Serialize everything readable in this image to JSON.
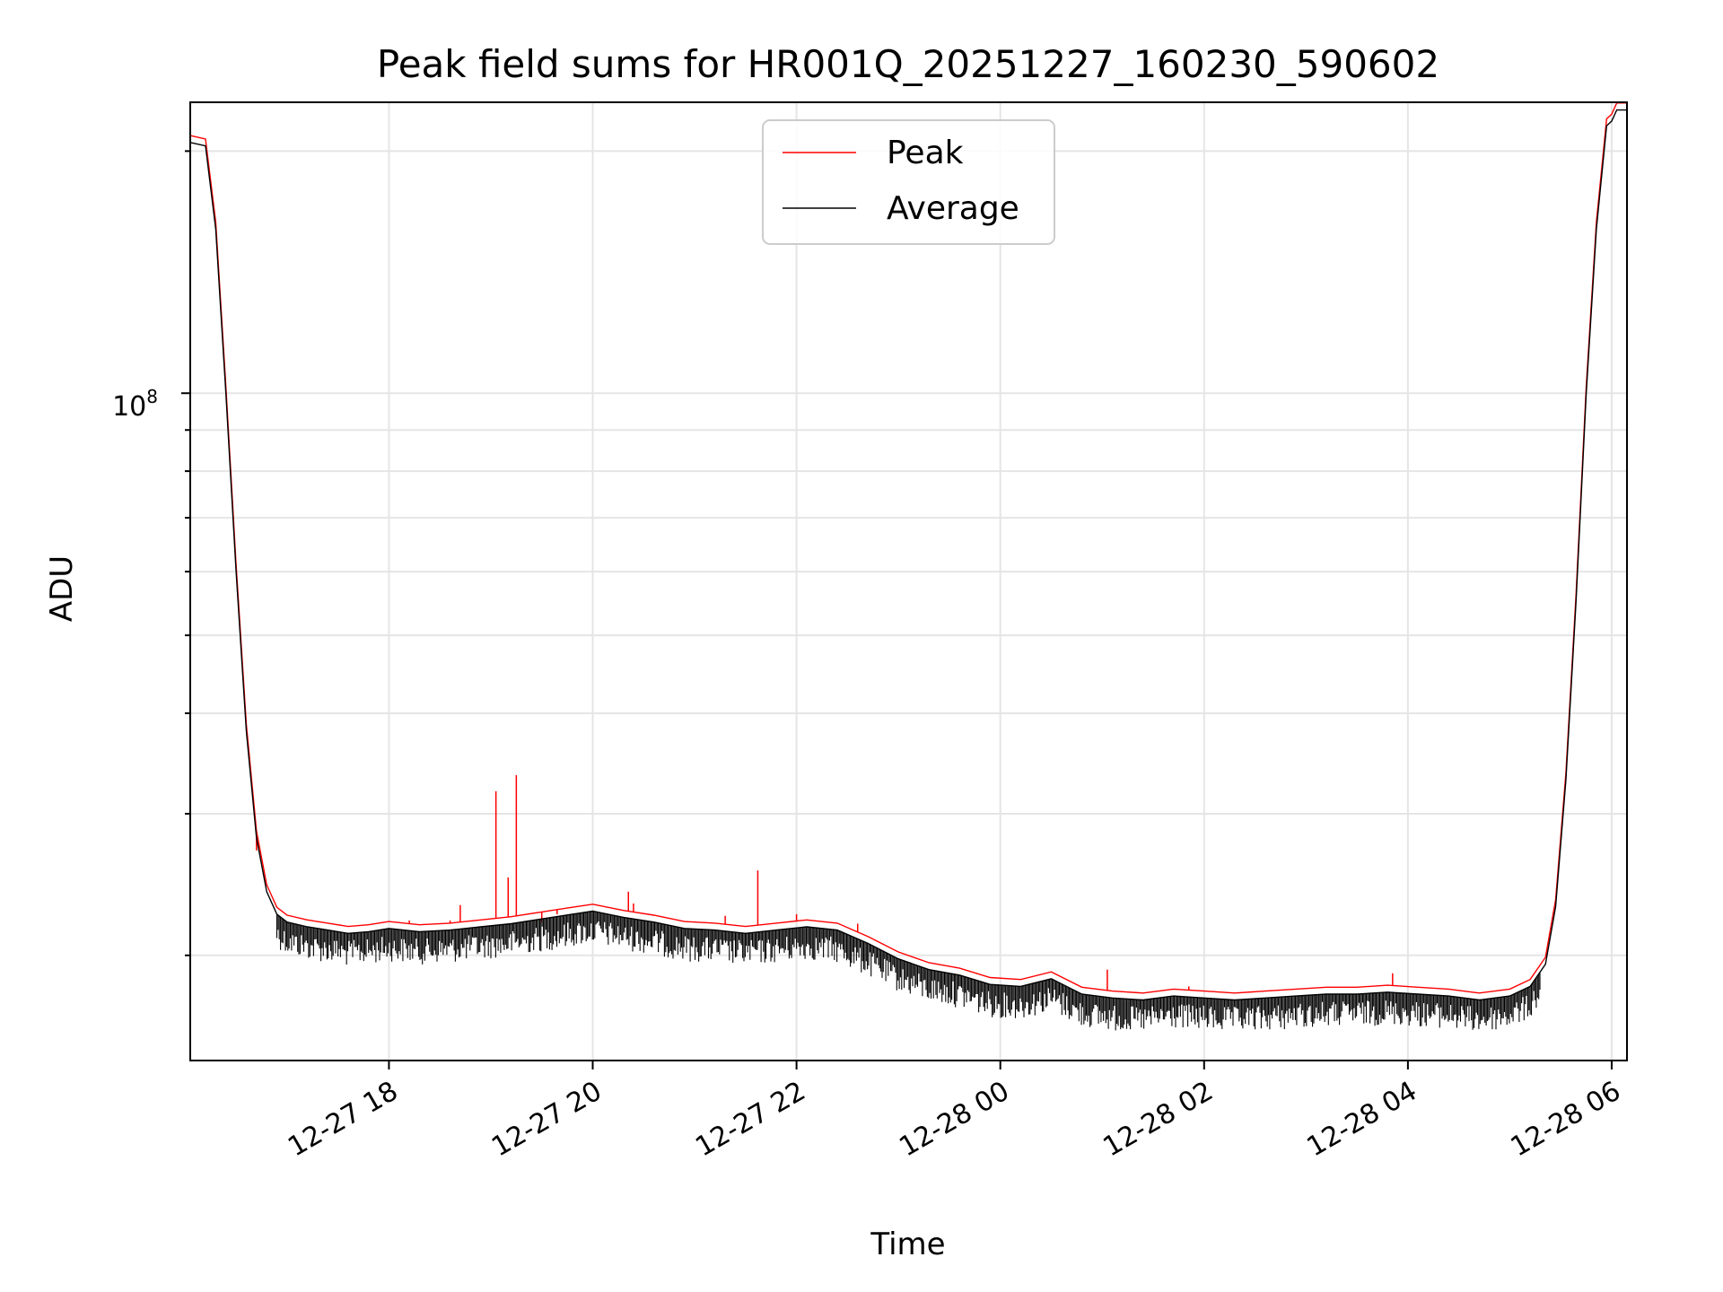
{
  "chart_data": {
    "type": "line",
    "title": "Peak field sums for HR001Q_20251227_160230_590602",
    "xlabel": "Time",
    "ylabel": "ADU",
    "yscale": "log",
    "ylim": [
      14800000,
      230000000
    ],
    "xlim_hours": [
      16.05,
      30.15
    ],
    "grid": true,
    "x_tick_labels": [
      "12-27 18",
      "12-27 20",
      "12-27 22",
      "12-28 00",
      "12-28 02",
      "12-28 04",
      "12-28 06"
    ],
    "x_tick_hours": [
      18,
      20,
      22,
      24,
      26,
      28,
      30
    ],
    "y_tick_major": {
      "base": "10",
      "exponent": "8",
      "value": 100000000
    },
    "y_minor_ticks": [
      20000000,
      30000000,
      40000000,
      50000000,
      60000000,
      70000000,
      80000000,
      90000000,
      200000000
    ],
    "legend": {
      "position": "upper center",
      "entries": [
        {
          "label": "Peak",
          "color": "#ff0000"
        },
        {
          "label": "Average",
          "color": "#000000"
        }
      ]
    },
    "series": [
      {
        "name": "Average",
        "color": "#000000",
        "x_hours": [
          16.05,
          16.2,
          16.3,
          16.4,
          16.5,
          16.6,
          16.7,
          16.8,
          16.9,
          17.0,
          17.2,
          17.4,
          17.6,
          17.8,
          18.0,
          18.3,
          18.6,
          18.9,
          19.2,
          19.5,
          19.8,
          20.0,
          20.3,
          20.6,
          20.9,
          21.2,
          21.5,
          21.8,
          22.1,
          22.4,
          22.7,
          23.0,
          23.3,
          23.6,
          23.9,
          24.2,
          24.5,
          24.8,
          25.1,
          25.4,
          25.7,
          26.0,
          26.3,
          26.6,
          26.9,
          27.2,
          27.5,
          27.8,
          28.1,
          28.4,
          28.7,
          29.0,
          29.2,
          29.35,
          29.45,
          29.55,
          29.65,
          29.75,
          29.85,
          29.95,
          30.0,
          30.05,
          30.15
        ],
        "values": [
          205000000,
          203000000,
          160000000,
          100000000,
          60000000,
          38000000,
          28000000,
          24000000,
          22500000,
          22000000,
          21700000,
          21500000,
          21300000,
          21400000,
          21600000,
          21400000,
          21500000,
          21700000,
          21900000,
          22200000,
          22500000,
          22700000,
          22300000,
          22000000,
          21600000,
          21500000,
          21300000,
          21500000,
          21700000,
          21500000,
          20700000,
          19800000,
          19200000,
          18900000,
          18400000,
          18300000,
          18700000,
          17900000,
          17700000,
          17600000,
          17800000,
          17700000,
          17600000,
          17700000,
          17800000,
          17900000,
          17900000,
          18000000,
          17900000,
          17800000,
          17600000,
          17800000,
          18300000,
          19500000,
          23000000,
          33000000,
          55000000,
          100000000,
          160000000,
          215000000,
          218000000,
          225000000,
          225000000
        ]
      },
      {
        "name": "Peak",
        "color": "#ff0000",
        "spike_hours": [
          16.7,
          18.2,
          18.6,
          18.7,
          19.05,
          19.17,
          19.25,
          19.5,
          19.65,
          20.35,
          20.4,
          21.3,
          21.62,
          22.0,
          22.6,
          25.05,
          25.85,
          27.85
        ],
        "spike_values": [
          27000000,
          22100000,
          22100000,
          23100000,
          32000000,
          25000000,
          33500000,
          22000000,
          22500000,
          24000000,
          23200000,
          22400000,
          25500000,
          22500000,
          21900000,
          19200000,
          18300000,
          19000000
        ]
      }
    ]
  }
}
